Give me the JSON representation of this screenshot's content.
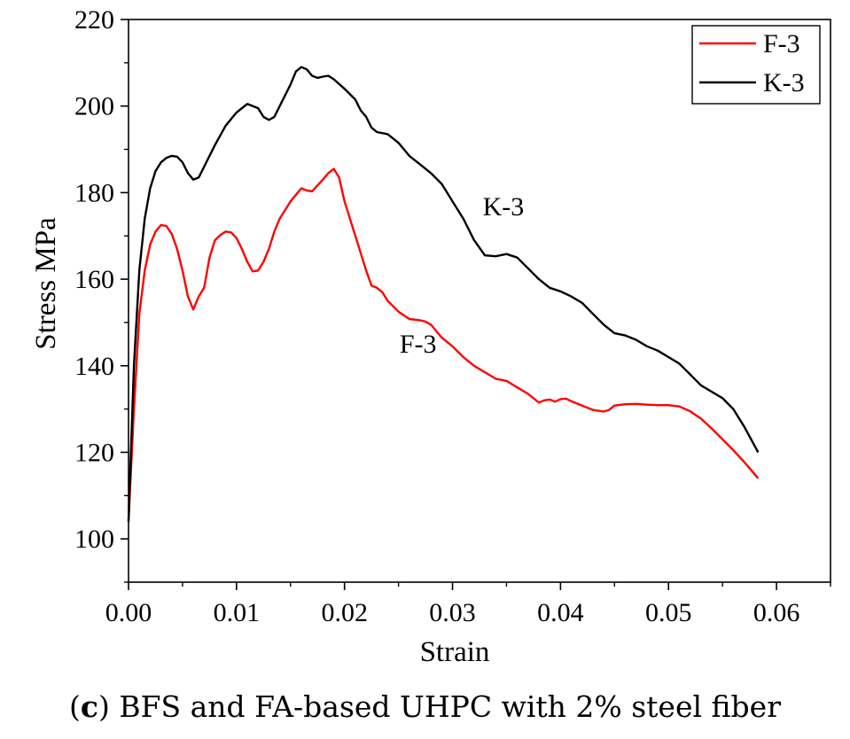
{
  "caption": {
    "letter": "c",
    "text": "BFS and FA-based UHPC with 2% steel fiber"
  },
  "chart_data": {
    "type": "line",
    "title": "",
    "xlabel": "Strain",
    "ylabel": "Stress MPa",
    "xlim": [
      0,
      0.065
    ],
    "ylim": [
      90,
      220
    ],
    "xticks": [
      0.0,
      0.01,
      0.02,
      0.03,
      0.04,
      0.05,
      0.06
    ],
    "xtick_labels": [
      "0.00",
      "0.01",
      "0.02",
      "0.03",
      "0.04",
      "0.05",
      "0.06"
    ],
    "yticks": [
      100,
      120,
      140,
      160,
      180,
      200,
      220
    ],
    "ytick_labels": [
      "100",
      "120",
      "140",
      "160",
      "180",
      "200",
      "220"
    ],
    "legend_position": "top-right",
    "series": [
      {
        "name": "F-3",
        "color": "#ff0000",
        "annotation": "F-3",
        "points": [
          [
            0.0,
            104
          ],
          [
            0.0005,
            130
          ],
          [
            0.001,
            152
          ],
          [
            0.0015,
            162
          ],
          [
            0.002,
            168
          ],
          [
            0.0025,
            171
          ],
          [
            0.003,
            172.5
          ],
          [
            0.0035,
            172.3
          ],
          [
            0.004,
            170.5
          ],
          [
            0.0045,
            167
          ],
          [
            0.005,
            162
          ],
          [
            0.0055,
            156
          ],
          [
            0.006,
            153
          ],
          [
            0.0065,
            156
          ],
          [
            0.007,
            158
          ],
          [
            0.0075,
            165
          ],
          [
            0.008,
            169
          ],
          [
            0.0085,
            170.2
          ],
          [
            0.009,
            171
          ],
          [
            0.0095,
            170.8
          ],
          [
            0.01,
            169.5
          ],
          [
            0.0105,
            167
          ],
          [
            0.011,
            164
          ],
          [
            0.0115,
            161.8
          ],
          [
            0.012,
            162
          ],
          [
            0.0125,
            164
          ],
          [
            0.013,
            167
          ],
          [
            0.0135,
            171
          ],
          [
            0.014,
            174
          ],
          [
            0.015,
            178
          ],
          [
            0.016,
            181
          ],
          [
            0.0165,
            180.5
          ],
          [
            0.017,
            180.3
          ],
          [
            0.018,
            183
          ],
          [
            0.0185,
            184.5
          ],
          [
            0.019,
            185.5
          ],
          [
            0.0195,
            183.5
          ],
          [
            0.02,
            178
          ],
          [
            0.021,
            170
          ],
          [
            0.022,
            162
          ],
          [
            0.0225,
            158.5
          ],
          [
            0.023,
            158
          ],
          [
            0.0235,
            157
          ],
          [
            0.024,
            155
          ],
          [
            0.025,
            152.5
          ],
          [
            0.026,
            150.8
          ],
          [
            0.027,
            150.5
          ],
          [
            0.0275,
            150.2
          ],
          [
            0.028,
            149.5
          ],
          [
            0.029,
            146.5
          ],
          [
            0.03,
            144.5
          ],
          [
            0.031,
            142
          ],
          [
            0.032,
            140
          ],
          [
            0.033,
            138.5
          ],
          [
            0.034,
            137
          ],
          [
            0.035,
            136.5
          ],
          [
            0.036,
            135
          ],
          [
            0.037,
            133.5
          ],
          [
            0.038,
            131.5
          ],
          [
            0.0385,
            132
          ],
          [
            0.039,
            132.2
          ],
          [
            0.0395,
            131.7
          ],
          [
            0.04,
            132.3
          ],
          [
            0.0405,
            132.4
          ],
          [
            0.041,
            131.8
          ],
          [
            0.042,
            130.8
          ],
          [
            0.043,
            129.8
          ],
          [
            0.044,
            129.4
          ],
          [
            0.0445,
            129.8
          ],
          [
            0.045,
            130.8
          ],
          [
            0.046,
            131.1
          ],
          [
            0.047,
            131.2
          ],
          [
            0.048,
            131
          ],
          [
            0.049,
            130.9
          ],
          [
            0.05,
            130.9
          ],
          [
            0.051,
            130.6
          ],
          [
            0.052,
            129.5
          ],
          [
            0.053,
            127.8
          ],
          [
            0.054,
            125.5
          ],
          [
            0.055,
            123
          ],
          [
            0.056,
            120.5
          ],
          [
            0.057,
            117.8
          ],
          [
            0.0583,
            114
          ]
        ]
      },
      {
        "name": "K-3",
        "color": "#000000",
        "annotation": "K-3",
        "points": [
          [
            0.0,
            104
          ],
          [
            0.0005,
            140
          ],
          [
            0.001,
            162
          ],
          [
            0.0015,
            174
          ],
          [
            0.002,
            181
          ],
          [
            0.0025,
            185
          ],
          [
            0.003,
            187
          ],
          [
            0.0035,
            188
          ],
          [
            0.004,
            188.5
          ],
          [
            0.0045,
            188.3
          ],
          [
            0.005,
            187
          ],
          [
            0.0055,
            184.5
          ],
          [
            0.006,
            183
          ],
          [
            0.0065,
            183.5
          ],
          [
            0.007,
            186
          ],
          [
            0.008,
            191
          ],
          [
            0.009,
            195.5
          ],
          [
            0.01,
            198.5
          ],
          [
            0.011,
            200.5
          ],
          [
            0.012,
            199.5
          ],
          [
            0.0125,
            197.5
          ],
          [
            0.013,
            196.8
          ],
          [
            0.0135,
            197.5
          ],
          [
            0.014,
            200
          ],
          [
            0.015,
            205
          ],
          [
            0.0155,
            208
          ],
          [
            0.016,
            209
          ],
          [
            0.0165,
            208.5
          ],
          [
            0.017,
            207
          ],
          [
            0.0175,
            206.5
          ],
          [
            0.018,
            206.8
          ],
          [
            0.0185,
            207
          ],
          [
            0.019,
            206.2
          ],
          [
            0.02,
            204
          ],
          [
            0.021,
            201.5
          ],
          [
            0.0215,
            199
          ],
          [
            0.022,
            197.5
          ],
          [
            0.0225,
            195
          ],
          [
            0.023,
            194
          ],
          [
            0.024,
            193.5
          ],
          [
            0.025,
            191.5
          ],
          [
            0.026,
            188.5
          ],
          [
            0.027,
            186.5
          ],
          [
            0.028,
            184.5
          ],
          [
            0.029,
            182
          ],
          [
            0.03,
            178
          ],
          [
            0.031,
            174
          ],
          [
            0.032,
            169
          ],
          [
            0.033,
            165.5
          ],
          [
            0.034,
            165.3
          ],
          [
            0.035,
            165.8
          ],
          [
            0.036,
            165
          ],
          [
            0.037,
            162.5
          ],
          [
            0.038,
            160
          ],
          [
            0.039,
            158
          ],
          [
            0.04,
            157.2
          ],
          [
            0.041,
            156
          ],
          [
            0.042,
            154.5
          ],
          [
            0.043,
            152
          ],
          [
            0.044,
            149.5
          ],
          [
            0.045,
            147.5
          ],
          [
            0.046,
            147
          ],
          [
            0.047,
            146
          ],
          [
            0.048,
            144.5
          ],
          [
            0.049,
            143.5
          ],
          [
            0.05,
            142
          ],
          [
            0.051,
            140.5
          ],
          [
            0.052,
            138
          ],
          [
            0.053,
            135.5
          ],
          [
            0.054,
            134
          ],
          [
            0.055,
            132.5
          ],
          [
            0.056,
            130
          ],
          [
            0.057,
            126
          ],
          [
            0.0583,
            120
          ]
        ]
      }
    ],
    "annotations": [
      {
        "text": "K-3",
        "x": 0.0328,
        "y": 174.8
      },
      {
        "text": "F-3",
        "x": 0.0251,
        "y": 143
      }
    ]
  }
}
